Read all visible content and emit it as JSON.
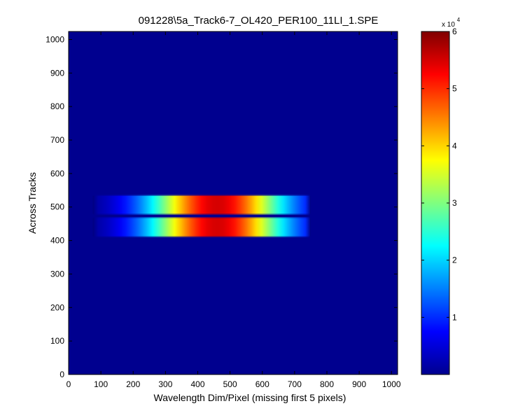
{
  "chart_data": {
    "type": "heatmap",
    "title": "091228\\5a_Track6-7_OL420_PER100_11LI_1.SPE",
    "xlabel": "Wavelength Dim/Pixel (missing first 5 pixels)",
    "ylabel": "Across Tracks",
    "xlim": [
      0,
      1019
    ],
    "ylim": [
      0,
      1024
    ],
    "x_ticks": [
      0,
      100,
      200,
      300,
      400,
      500,
      600,
      700,
      800,
      900,
      1000
    ],
    "y_ticks": [
      0,
      100,
      200,
      300,
      400,
      500,
      600,
      700,
      800,
      900,
      1000
    ],
    "colormap": "jet",
    "background_color": "#00008f",
    "colorbar": {
      "range": [
        0,
        60000
      ],
      "ticks": [
        1,
        2,
        3,
        4,
        5,
        6
      ],
      "exponent_label": "x 10",
      "exponent_power": "4"
    },
    "bands": [
      {
        "name": "upper-track",
        "y_range": [
          477,
          536
        ],
        "x_range": [
          75,
          750
        ],
        "peak_value": 55000,
        "peak_x": 460
      },
      {
        "name": "lower-track",
        "y_range": [
          410,
          470
        ],
        "x_range": [
          75,
          750
        ],
        "peak_value": 55000,
        "peak_x": 460
      }
    ],
    "grid": false
  }
}
